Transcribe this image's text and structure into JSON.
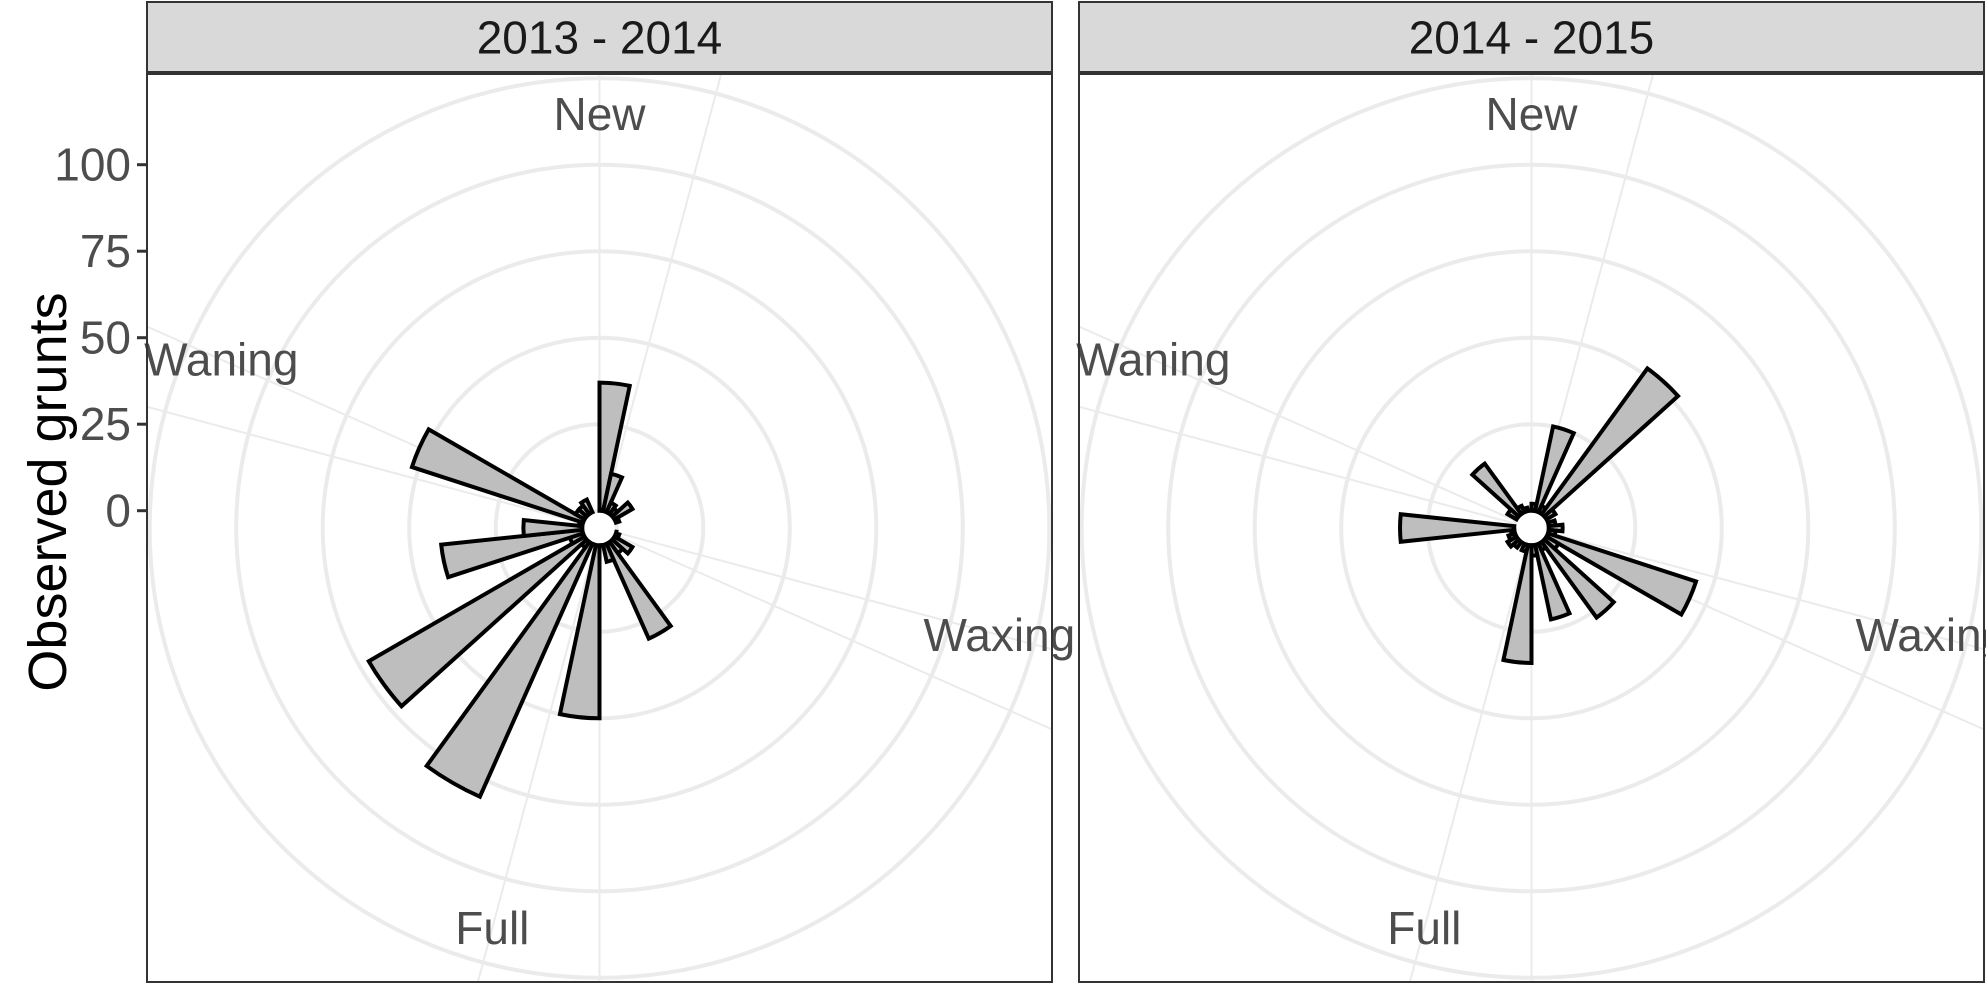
{
  "chart_data": {
    "type": "bar",
    "coord": "polar",
    "ylabel": "Observed grunts",
    "yticks": [
      0,
      25,
      50,
      75,
      100
    ],
    "ylim": [
      -5,
      120
    ],
    "phase_labels": [
      "New",
      "Waxing",
      "Full",
      "Waning"
    ],
    "phase_label_angles": [
      0,
      105,
      195,
      294
    ],
    "grid": true,
    "colors": {
      "bar_fill": "#bebebe",
      "bar_stroke": "#000000",
      "grid": "#ebebeb",
      "strip_fill": "#d9d9d9"
    },
    "panels": [
      {
        "title": "2013 - 2014",
        "bars": [
          {
            "start": 0,
            "end": 12,
            "value": 37
          },
          {
            "start": 12,
            "end": 24,
            "value": 11
          },
          {
            "start": 24,
            "end": 36,
            "value": 3
          },
          {
            "start": 36,
            "end": 48,
            "value": 2
          },
          {
            "start": 48,
            "end": 60,
            "value": 6
          },
          {
            "start": 60,
            "end": 72,
            "value": 1
          },
          {
            "start": 96,
            "end": 108,
            "value": 0
          },
          {
            "start": 108,
            "end": 120,
            "value": 1
          },
          {
            "start": 120,
            "end": 132,
            "value": 6
          },
          {
            "start": 132,
            "end": 144,
            "value": 4
          },
          {
            "start": 144,
            "end": 156,
            "value": 30
          },
          {
            "start": 156,
            "end": 168,
            "value": 5
          },
          {
            "start": 168,
            "end": 180,
            "value": 0
          },
          {
            "start": 180,
            "end": 192,
            "value": 50
          },
          {
            "start": 192,
            "end": 204,
            "value": 0
          },
          {
            "start": 204,
            "end": 216,
            "value": 80
          },
          {
            "start": 216,
            "end": 228,
            "value": 2
          },
          {
            "start": 228,
            "end": 240,
            "value": 72
          },
          {
            "start": 240,
            "end": 252,
            "value": 4
          },
          {
            "start": 252,
            "end": 264,
            "value": 41
          },
          {
            "start": 264,
            "end": 276,
            "value": 17
          },
          {
            "start": 276,
            "end": 288,
            "value": 1
          },
          {
            "start": 288,
            "end": 300,
            "value": 52
          },
          {
            "start": 300,
            "end": 312,
            "value": 3
          },
          {
            "start": 312,
            "end": 324,
            "value": 3
          },
          {
            "start": 324,
            "end": 336,
            "value": 4
          }
        ]
      },
      {
        "title": "2014 - 2015",
        "bars": [
          {
            "start": 0,
            "end": 12,
            "value": 2
          },
          {
            "start": 12,
            "end": 24,
            "value": 25
          },
          {
            "start": 24,
            "end": 36,
            "value": 2
          },
          {
            "start": 36,
            "end": 48,
            "value": 52
          },
          {
            "start": 48,
            "end": 60,
            "value": 3
          },
          {
            "start": 72,
            "end": 84,
            "value": 2
          },
          {
            "start": 84,
            "end": 96,
            "value": 4
          },
          {
            "start": 96,
            "end": 108,
            "value": 2
          },
          {
            "start": 108,
            "end": 120,
            "value": 45
          },
          {
            "start": 120,
            "end": 132,
            "value": 4
          },
          {
            "start": 132,
            "end": 144,
            "value": 27
          },
          {
            "start": 144,
            "end": 156,
            "value": 2
          },
          {
            "start": 156,
            "end": 168,
            "value": 22
          },
          {
            "start": 168,
            "end": 180,
            "value": 3
          },
          {
            "start": 180,
            "end": 192,
            "value": 34
          },
          {
            "start": 192,
            "end": 204,
            "value": 2
          },
          {
            "start": 216,
            "end": 228,
            "value": 2
          },
          {
            "start": 228,
            "end": 240,
            "value": 3
          },
          {
            "start": 240,
            "end": 252,
            "value": 2
          },
          {
            "start": 252,
            "end": 264,
            "value": 1
          },
          {
            "start": 264,
            "end": 276,
            "value": 33
          },
          {
            "start": 300,
            "end": 312,
            "value": 3
          },
          {
            "start": 312,
            "end": 324,
            "value": 18
          },
          {
            "start": 324,
            "end": 336,
            "value": 2
          },
          {
            "start": 336,
            "end": 348,
            "value": 1
          }
        ]
      }
    ]
  }
}
